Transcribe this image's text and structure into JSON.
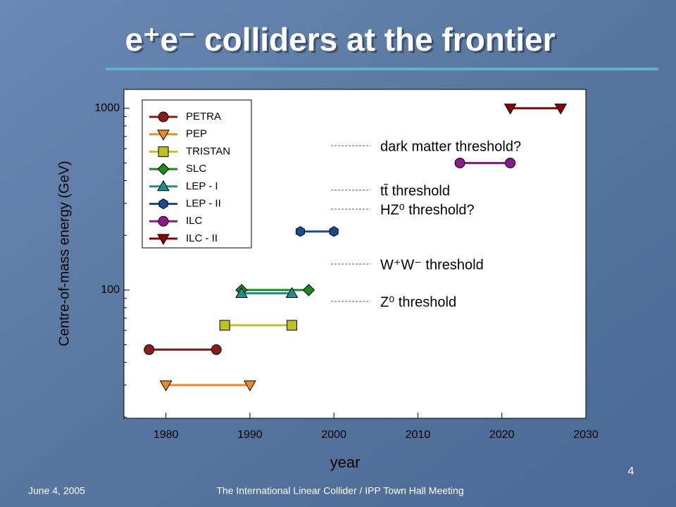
{
  "slide": {
    "title": "e⁺e⁻ colliders at the frontier",
    "date": "June 4, 2005",
    "footer": "The International Linear Collider / IPP Town Hall Meeting",
    "page": "4"
  },
  "chart_data": {
    "type": "line",
    "x_label": "year",
    "y_label": "Centre-of-mass energy (GeV)",
    "xlim": [
      1975,
      2030
    ],
    "xticks": [
      1980,
      1990,
      2000,
      2010,
      2020,
      2030
    ],
    "ylim": [
      19.7,
      1270
    ],
    "y_log": true,
    "yticks": [
      100,
      1000
    ],
    "yminor_ticks": [
      20,
      30,
      40,
      50,
      60,
      70,
      80,
      90,
      200,
      300,
      400,
      500,
      600,
      700,
      800,
      900
    ],
    "legend": "upper left",
    "series": [
      {
        "name": "PETRA",
        "color": "#8b1a1a",
        "marker": "circle",
        "x": [
          1978,
          1986
        ],
        "values": [
          47,
          47
        ]
      },
      {
        "name": "PEP",
        "color": "#f08a20",
        "marker": "triangle-down",
        "x": [
          1980,
          1990
        ],
        "values": [
          30,
          30
        ]
      },
      {
        "name": "TRISTAN",
        "color": "#c0c020",
        "marker": "square",
        "x": [
          1987,
          1995
        ],
        "values": [
          64,
          64
        ]
      },
      {
        "name": "SLC",
        "color": "#1a8a1a",
        "marker": "diamond",
        "x": [
          1989,
          1997
        ],
        "values": [
          100,
          100
        ]
      },
      {
        "name": "LEP - I",
        "color": "#20908a",
        "marker": "triangle-up",
        "x": [
          1989,
          1995
        ],
        "values": [
          96,
          96
        ]
      },
      {
        "name": "LEP - II",
        "color": "#1a4a90",
        "marker": "hexagon",
        "x": [
          1996,
          2000
        ],
        "values": [
          210,
          210
        ]
      },
      {
        "name": "ILC",
        "color": "#8a1a8a",
        "marker": "circle",
        "x": [
          2015,
          2021
        ],
        "values": [
          500,
          500
        ]
      },
      {
        "name": "ILC - II",
        "color": "#8b0000",
        "marker": "triangle-down",
        "x": [
          2021,
          2027
        ],
        "values": [
          1000,
          1000
        ]
      }
    ],
    "annotations": [
      "dark matter threshold?",
      "tt̄ threshold",
      "HZ⁰ threshold?",
      "W⁺W⁻ threshold",
      "Z⁰ threshold"
    ]
  }
}
